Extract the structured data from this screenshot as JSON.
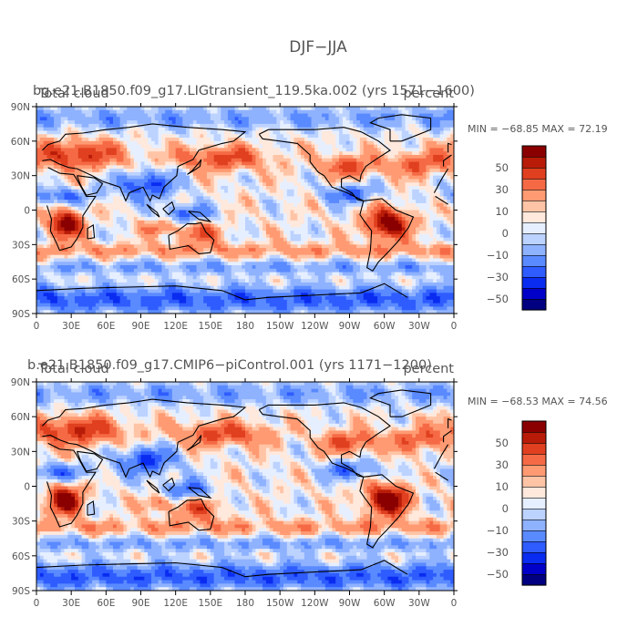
{
  "figure_title": "DJF−JJA",
  "chart_data": [
    {
      "type": "heatmap",
      "title": "bg.e21.B1850.f09_g17.LIGtransient_119.5ka.002 (yrs 1571−1600)",
      "left_label": "Total cloud",
      "right_label": "percent",
      "stats_text": "MIN = −68.85 MAX =  72.19",
      "min": -68.85,
      "max": 72.19,
      "field_seed": 1,
      "xlabel": "",
      "ylabel": "",
      "x_ticks": [
        "0",
        "30E",
        "60E",
        "90E",
        "120E",
        "150E",
        "180",
        "150W",
        "120W",
        "90W",
        "60W",
        "30W",
        "0"
      ],
      "y_ticks": [
        "90N",
        "60N",
        "30N",
        "0",
        "30S",
        "60S",
        "90S"
      ],
      "colorbar": {
        "levels": [
          -60,
          -50,
          -40,
          -30,
          -20,
          -10,
          -5,
          0,
          5,
          10,
          20,
          30,
          40,
          50,
          60
        ],
        "labels": [
          "50",
          "30",
          "10",
          "0",
          "−10",
          "−30",
          "−50"
        ]
      }
    },
    {
      "type": "heatmap",
      "title": "b.e21.B1850.f09_g17.CMIP6−piControl.001 (yrs 1171−1200)",
      "left_label": "Total cloud",
      "right_label": "percent",
      "stats_text": "MIN = −68.53 MAX =  74.56",
      "min": -68.53,
      "max": 74.56,
      "field_seed": 2,
      "xlabel": "",
      "ylabel": "",
      "x_ticks": [
        "0",
        "30E",
        "60E",
        "90E",
        "120E",
        "150E",
        "180",
        "150W",
        "120W",
        "90W",
        "60W",
        "30W",
        "0"
      ],
      "y_ticks": [
        "90N",
        "60N",
        "30N",
        "0",
        "30S",
        "60S",
        "90S"
      ],
      "colorbar": {
        "levels": [
          -60,
          -50,
          -40,
          -30,
          -20,
          -10,
          -5,
          0,
          5,
          10,
          20,
          30,
          40,
          50,
          60
        ],
        "labels": [
          "50",
          "30",
          "10",
          "0",
          "−10",
          "−30",
          "−50"
        ]
      }
    }
  ],
  "colors": {
    "palette": [
      "#000080",
      "#0000c8",
      "#0a2cf0",
      "#2e5cff",
      "#5a8aff",
      "#8fb2ff",
      "#bcd2ff",
      "#e6efff",
      "#ffe8dc",
      "#ffc4a6",
      "#ff9a72",
      "#f56a45",
      "#e0401f",
      "#b81c08",
      "#8a0000"
    ],
    "coast": "#000000",
    "text": "#555555"
  }
}
